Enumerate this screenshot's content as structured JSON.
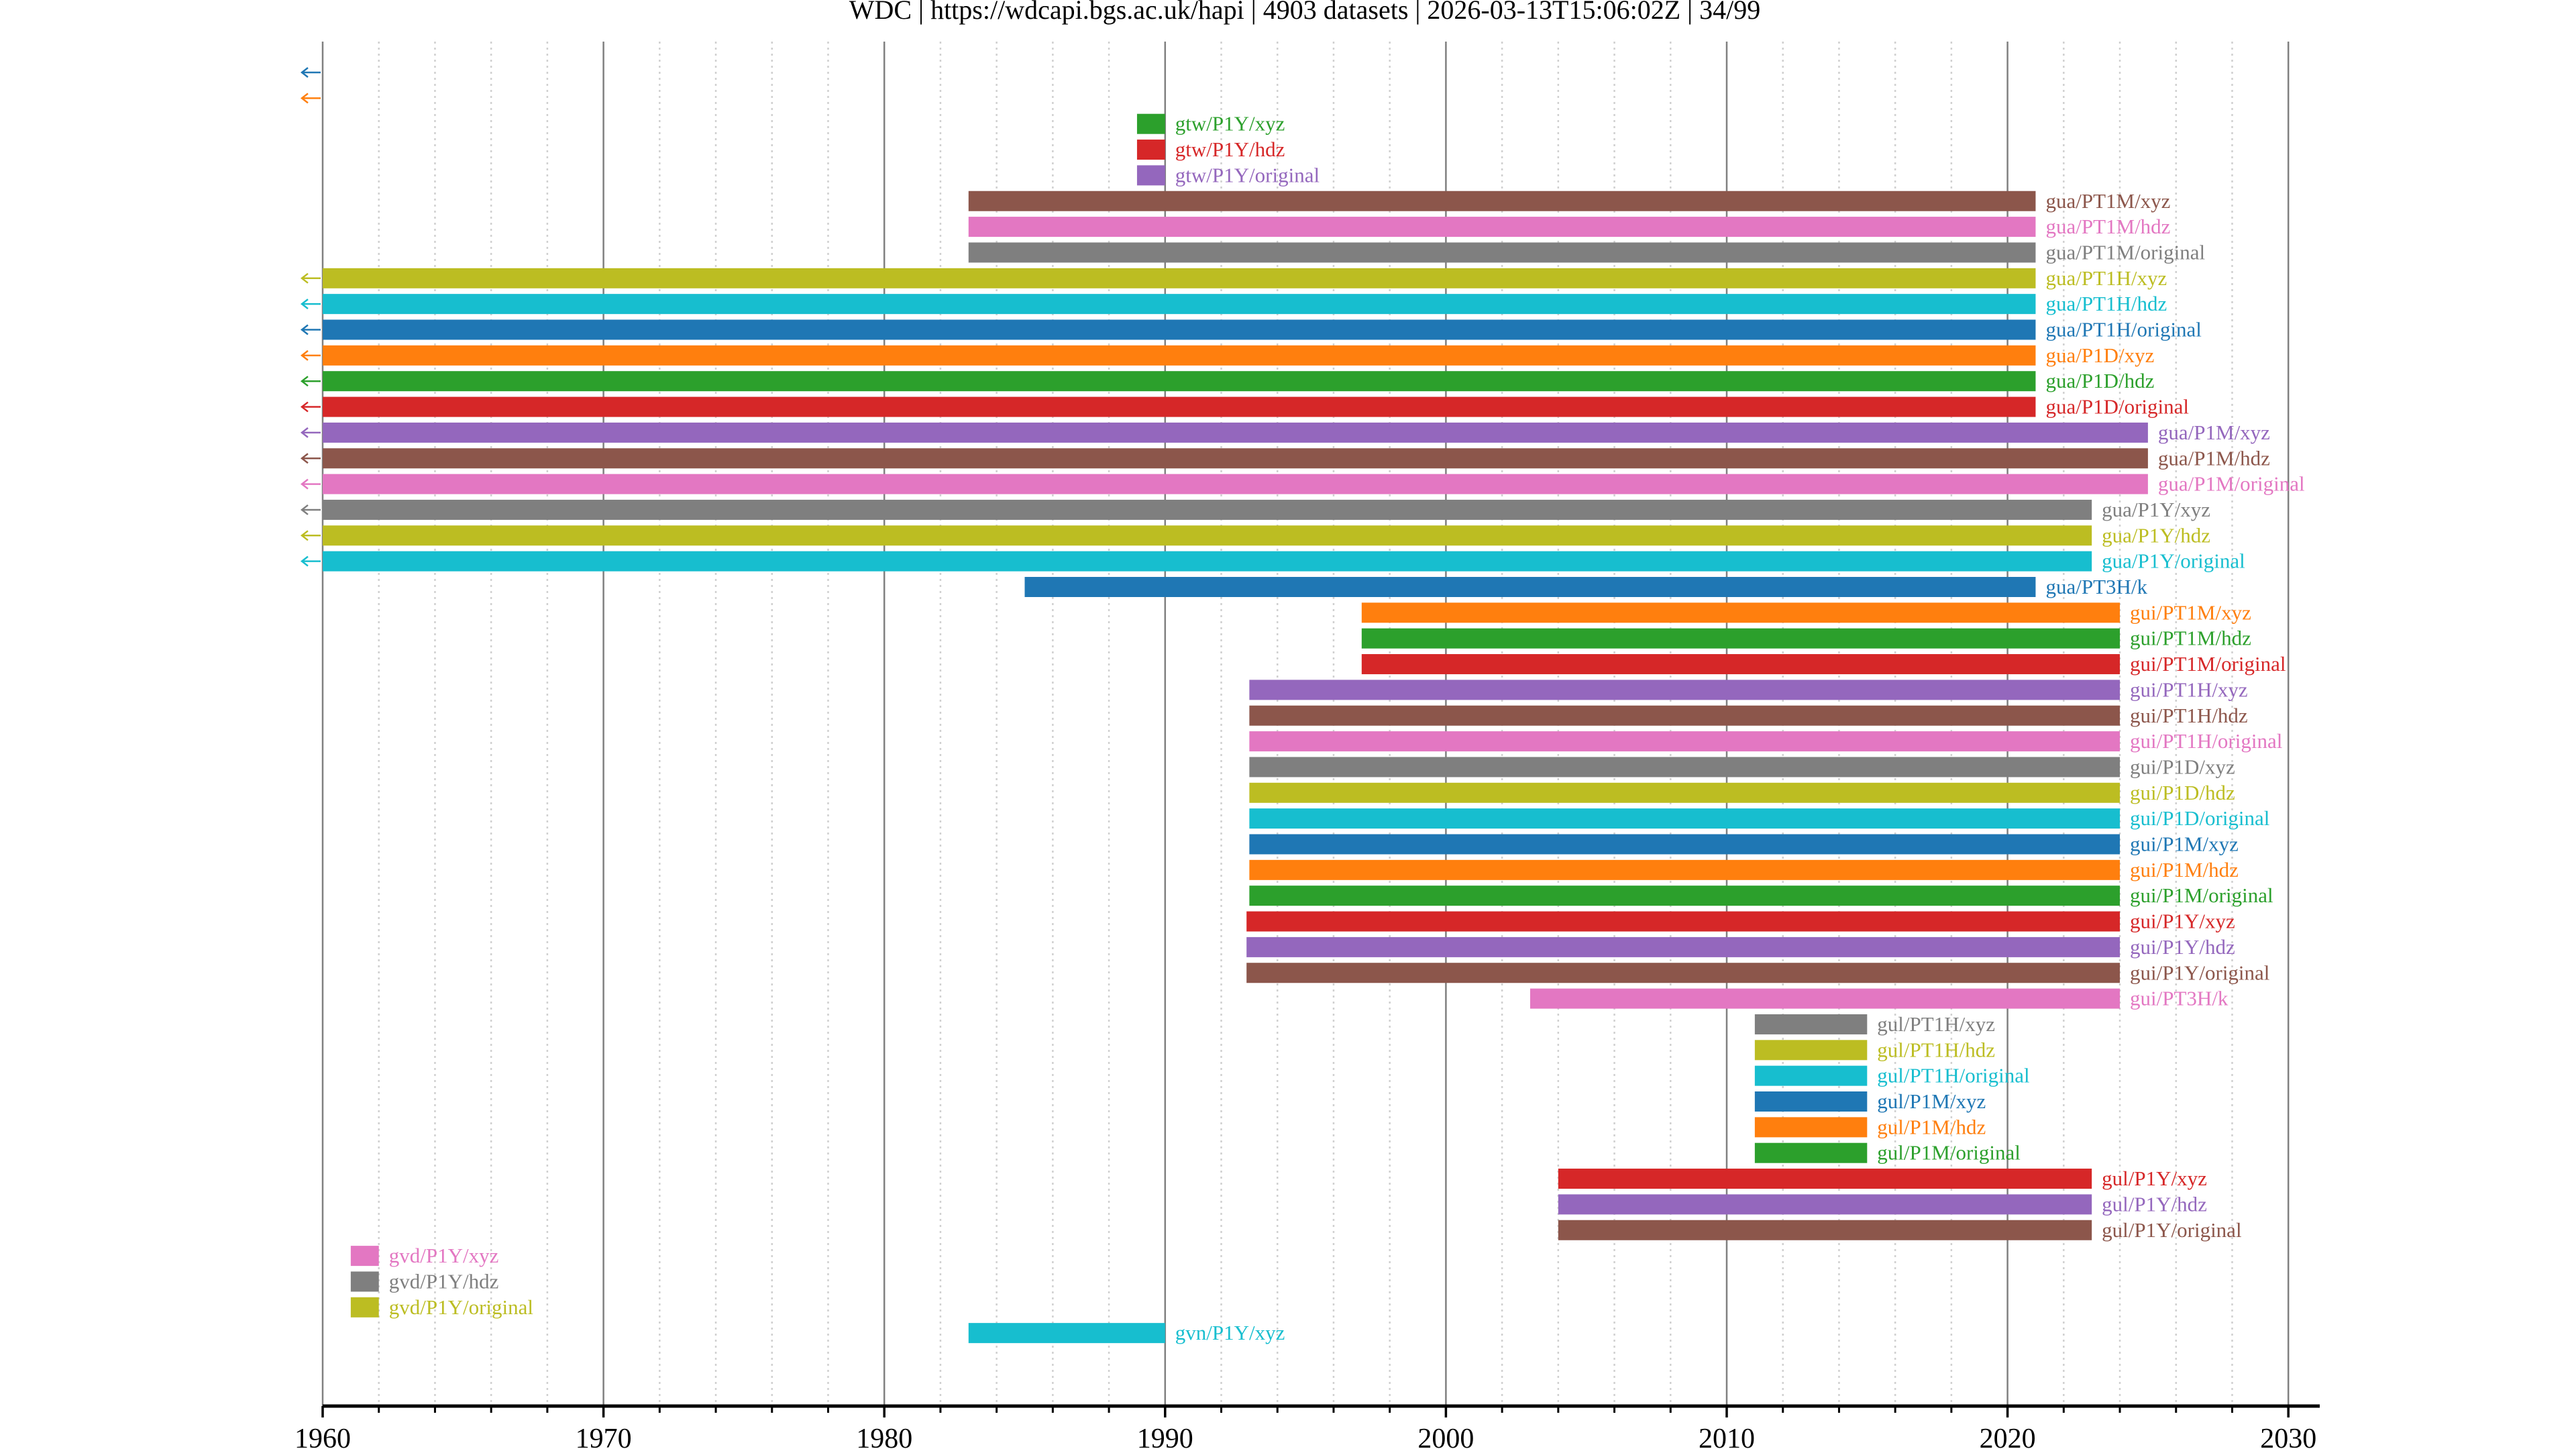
{
  "title": "WDC | https://wdcapi.bgs.ac.uk/hapi | 4903 datasets | 2026-03-13T15:06:02Z | 34/99",
  "chart_data": {
    "type": "timeline",
    "title": "WDC | https://wdcapi.bgs.ac.uk/hapi | 4903 datasets | 2026-03-13T15:06:02Z | 34/99",
    "xlabel": "",
    "ylabel": "",
    "xlim": [
      1960,
      2031.2
    ],
    "x_major_ticks": [
      1960,
      1970,
      1980,
      1990,
      2000,
      2010,
      2020,
      2030
    ],
    "x_tick_labels": [
      "1960",
      "1970",
      "1980",
      "1990",
      "2000",
      "2010",
      "2020",
      "2030"
    ],
    "x_minor_step": 2,
    "grid": "major solid, minor dotted",
    "colors": [
      "#1f77b4",
      "#ff7f0e",
      "#2ca02c",
      "#d62728",
      "#9467bd",
      "#8c564b",
      "#e377c2",
      "#7f7f7f",
      "#bcbd22",
      "#17becf"
    ],
    "rows": [
      {
        "label": "",
        "start": null,
        "end": null,
        "before_range": true,
        "color": "#1f77b4"
      },
      {
        "label": "",
        "start": null,
        "end": null,
        "before_range": true,
        "color": "#ff7f0e"
      },
      {
        "label": "gtw/P1Y/xyz",
        "start": 1989,
        "end": 1990,
        "before_range": false,
        "color": "#2ca02c"
      },
      {
        "label": "gtw/P1Y/hdz",
        "start": 1989,
        "end": 1990,
        "before_range": false,
        "color": "#d62728"
      },
      {
        "label": "gtw/P1Y/original",
        "start": 1989,
        "end": 1990,
        "before_range": false,
        "color": "#9467bd"
      },
      {
        "label": "gua/PT1M/xyz",
        "start": 1983,
        "end": 2021,
        "before_range": false,
        "color": "#8c564b"
      },
      {
        "label": "gua/PT1M/hdz",
        "start": 1983,
        "end": 2021,
        "before_range": false,
        "color": "#e377c2"
      },
      {
        "label": "gua/PT1M/original",
        "start": 1983,
        "end": 2021,
        "before_range": false,
        "color": "#7f7f7f"
      },
      {
        "label": "gua/PT1H/xyz",
        "start": 1960,
        "end": 2021,
        "before_range": true,
        "color": "#bcbd22"
      },
      {
        "label": "gua/PT1H/hdz",
        "start": 1960,
        "end": 2021,
        "before_range": true,
        "color": "#17becf"
      },
      {
        "label": "gua/PT1H/original",
        "start": 1960,
        "end": 2021,
        "before_range": true,
        "color": "#1f77b4"
      },
      {
        "label": "gua/P1D/xyz",
        "start": 1960,
        "end": 2021,
        "before_range": true,
        "color": "#ff7f0e"
      },
      {
        "label": "gua/P1D/hdz",
        "start": 1960,
        "end": 2021,
        "before_range": true,
        "color": "#2ca02c"
      },
      {
        "label": "gua/P1D/original",
        "start": 1960,
        "end": 2021,
        "before_range": true,
        "color": "#d62728"
      },
      {
        "label": "gua/P1M/xyz",
        "start": 1960,
        "end": 2025,
        "before_range": true,
        "color": "#9467bd"
      },
      {
        "label": "gua/P1M/hdz",
        "start": 1960,
        "end": 2025,
        "before_range": true,
        "color": "#8c564b"
      },
      {
        "label": "gua/P1M/original",
        "start": 1960,
        "end": 2025,
        "before_range": true,
        "color": "#e377c2"
      },
      {
        "label": "gua/P1Y/xyz",
        "start": 1960,
        "end": 2023,
        "before_range": true,
        "color": "#7f7f7f"
      },
      {
        "label": "gua/P1Y/hdz",
        "start": 1960,
        "end": 2023,
        "before_range": true,
        "color": "#bcbd22"
      },
      {
        "label": "gua/P1Y/original",
        "start": 1960,
        "end": 2023,
        "before_range": true,
        "color": "#17becf"
      },
      {
        "label": "gua/PT3H/k",
        "start": 1985,
        "end": 2021,
        "before_range": false,
        "color": "#1f77b4"
      },
      {
        "label": "gui/PT1M/xyz",
        "start": 1997,
        "end": 2024,
        "before_range": false,
        "color": "#ff7f0e"
      },
      {
        "label": "gui/PT1M/hdz",
        "start": 1997,
        "end": 2024,
        "before_range": false,
        "color": "#2ca02c"
      },
      {
        "label": "gui/PT1M/original",
        "start": 1997,
        "end": 2024,
        "before_range": false,
        "color": "#d62728"
      },
      {
        "label": "gui/PT1H/xyz",
        "start": 1993,
        "end": 2024,
        "before_range": false,
        "color": "#9467bd"
      },
      {
        "label": "gui/PT1H/hdz",
        "start": 1993,
        "end": 2024,
        "before_range": false,
        "color": "#8c564b"
      },
      {
        "label": "gui/PT1H/original",
        "start": 1993,
        "end": 2024,
        "before_range": false,
        "color": "#e377c2"
      },
      {
        "label": "gui/P1D/xyz",
        "start": 1993,
        "end": 2024,
        "before_range": false,
        "color": "#7f7f7f"
      },
      {
        "label": "gui/P1D/hdz",
        "start": 1993,
        "end": 2024,
        "before_range": false,
        "color": "#bcbd22"
      },
      {
        "label": "gui/P1D/original",
        "start": 1993,
        "end": 2024,
        "before_range": false,
        "color": "#17becf"
      },
      {
        "label": "gui/P1M/xyz",
        "start": 1993,
        "end": 2024,
        "before_range": false,
        "color": "#1f77b4"
      },
      {
        "label": "gui/P1M/hdz",
        "start": 1993,
        "end": 2024,
        "before_range": false,
        "color": "#ff7f0e"
      },
      {
        "label": "gui/P1M/original",
        "start": 1993,
        "end": 2024,
        "before_range": false,
        "color": "#2ca02c"
      },
      {
        "label": "gui/P1Y/xyz",
        "start": 1992.9,
        "end": 2024,
        "before_range": false,
        "color": "#d62728"
      },
      {
        "label": "gui/P1Y/hdz",
        "start": 1992.9,
        "end": 2024,
        "before_range": false,
        "color": "#9467bd"
      },
      {
        "label": "gui/P1Y/original",
        "start": 1992.9,
        "end": 2024,
        "before_range": false,
        "color": "#8c564b"
      },
      {
        "label": "gui/PT3H/k",
        "start": 2003,
        "end": 2024,
        "before_range": false,
        "color": "#e377c2"
      },
      {
        "label": "gul/PT1H/xyz",
        "start": 2011,
        "end": 2015,
        "before_range": false,
        "color": "#7f7f7f"
      },
      {
        "label": "gul/PT1H/hdz",
        "start": 2011,
        "end": 2015,
        "before_range": false,
        "color": "#bcbd22"
      },
      {
        "label": "gul/PT1H/original",
        "start": 2011,
        "end": 2015,
        "before_range": false,
        "color": "#17becf"
      },
      {
        "label": "gul/P1M/xyz",
        "start": 2011,
        "end": 2015,
        "before_range": false,
        "color": "#1f77b4"
      },
      {
        "label": "gul/P1M/hdz",
        "start": 2011,
        "end": 2015,
        "before_range": false,
        "color": "#ff7f0e"
      },
      {
        "label": "gul/P1M/original",
        "start": 2011,
        "end": 2015,
        "before_range": false,
        "color": "#2ca02c"
      },
      {
        "label": "gul/P1Y/xyz",
        "start": 2004,
        "end": 2023,
        "before_range": false,
        "color": "#d62728"
      },
      {
        "label": "gul/P1Y/hdz",
        "start": 2004,
        "end": 2023,
        "before_range": false,
        "color": "#9467bd"
      },
      {
        "label": "gul/P1Y/original",
        "start": 2004,
        "end": 2023,
        "before_range": false,
        "color": "#8c564b"
      },
      {
        "label": "gvd/P1Y/xyz",
        "start": 1961,
        "end": 1962,
        "before_range": false,
        "color": "#e377c2"
      },
      {
        "label": "gvd/P1Y/hdz",
        "start": 1961,
        "end": 1962,
        "before_range": false,
        "color": "#7f7f7f"
      },
      {
        "label": "gvd/P1Y/original",
        "start": 1961,
        "end": 1962,
        "before_range": false,
        "color": "#bcbd22"
      },
      {
        "label": "gvn/P1Y/xyz",
        "start": 1983,
        "end": 1990,
        "before_range": false,
        "color": "#17becf"
      }
    ]
  }
}
